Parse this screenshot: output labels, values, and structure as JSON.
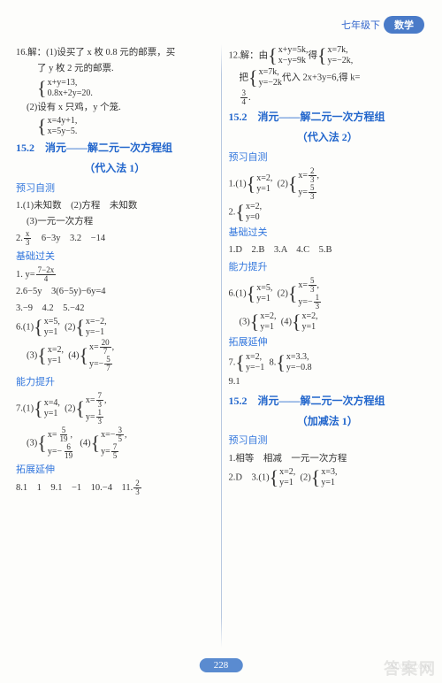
{
  "header": {
    "grade": "七年级下",
    "subject": "数学"
  },
  "left": {
    "p16": {
      "t": "16.解：(1)设买了 x 枚 0.8 元的邮票，买",
      "t2": "了 y 枚 2 元的邮票.",
      "sys1a": "x+y=13,",
      "sys1b": "0.8x+2y=20.",
      "t3": "(2)设有 x 只鸡，y 个笼.",
      "sys2a": "x=4y+1,",
      "sys2b": "x=5y−5."
    },
    "title1": "15.2　消元——解二元一次方程组",
    "title1b": "（代入法 1）",
    "yuxi": "预习自测",
    "y1": "1.(1)未知数　(2)方程　未知数",
    "y1b": "(3)一元一次方程",
    "y2a": "2.",
    "y2frac": {
      "n": "x",
      "d": "3"
    },
    "y2b": "　6−3y　3.2　−14",
    "jichu": "基础过关",
    "j1a": "1. y=",
    "j1frac": {
      "n": "7−2x",
      "d": "4"
    },
    "j2": "2.6−5y　3(6−5y)−6y=4",
    "j3": "3.−9　4.2　5.−42",
    "j6": "6.(1)",
    "j6s1a": "x=5,",
    "j6s1b": "y=1",
    "j6_2": "(2)",
    "j6s2a": "x=−2,",
    "j6s2b": "y=−1",
    "j6_3": "(3)",
    "j6s3a": "x=2,",
    "j6s3b": "y=1",
    "j6_4": "(4)",
    "j6s4a": "x=",
    "j6s4af": {
      "n": "20",
      "d": "7"
    },
    "j6s4ac": ",",
    "j6s4b": "y=−",
    "j6s4bf": {
      "n": "5",
      "d": "7"
    },
    "nengli": "能力提升",
    "n7": "7.(1)",
    "n7s1a": "x=4,",
    "n7s1b": "y=1",
    "n7_2": "(2)",
    "n7s2a": "x=",
    "n7s2af": {
      "n": "7",
      "d": "3"
    },
    "n7s2ac": ",",
    "n7s2b": "y=",
    "n7s2bf": {
      "n": "1",
      "d": "3"
    },
    "n7_3": "(3)",
    "n7s3a": "x=",
    "n7s3af": {
      "n": "5",
      "d": "19"
    },
    "n7s3ac": ",",
    "n7s3b": "y=−",
    "n7s3bf": {
      "n": "6",
      "d": "19"
    },
    "n7_4": "(4)",
    "n7s4a": "x=−",
    "n7s4af": {
      "n": "3",
      "d": "5"
    },
    "n7s4ac": ",",
    "n7s4b": "y=",
    "n7s4bf": {
      "n": "7",
      "d": "5"
    },
    "tuozhan": "拓展延伸",
    "t8": "8.1　1　9.1　−1　10.−4　11.",
    "t8f": {
      "n": "2",
      "d": "3"
    }
  },
  "right": {
    "p12a": "12.解：由",
    "p12s1a": "x+y=5k,",
    "p12s1b": "x−y=9k",
    "p12b": "得",
    "p12s2a": "x=7k,",
    "p12s2b": "y=−2k,",
    "p12c": "把",
    "p12s3a": "x=7k,",
    "p12s3b": "y=−2k",
    "p12d": "代入 2x+3y=6,得 k=",
    "p12f": {
      "n": "3",
      "d": "4"
    },
    "p12e": ".",
    "title2": "15.2　消元——解二元一次方程组",
    "title2b": "（代入法 2）",
    "yuxi": "预习自测",
    "y1": "1.(1)",
    "y1s1a": "x=2,",
    "y1s1b": "y=1",
    "y1_2": "(2)",
    "y1s2a": "x=",
    "y1s2af": {
      "n": "2",
      "d": "3"
    },
    "y1s2ac": ",",
    "y1s2b": "y=",
    "y1s2bf": {
      "n": "5",
      "d": "3"
    },
    "y2": "2.",
    "y2s1a": "x=2,",
    "y2s1b": "y=0",
    "jichu": "基础过关",
    "j1": "1.D　2.B　3.A　4.C　5.B",
    "nengli": "能力提升",
    "n6": "6.(1)",
    "n6s1a": "x=5,",
    "n6s1b": "y=1",
    "n6_2": "(2)",
    "n6s2a": "x=",
    "n6s2af": {
      "n": "5",
      "d": "3"
    },
    "n6s2ac": ",",
    "n6s2b": "y=−",
    "n6s2bf": {
      "n": "1",
      "d": "3"
    },
    "n6_3": "(3)",
    "n6s3a": "x=2,",
    "n6s3b": "y=1",
    "n6_4": "(4)",
    "n6s4a": "x=2,",
    "n6s4b": "y=1",
    "tuozhan": "拓展延伸",
    "t7": "7.",
    "t7s1a": "x=2,",
    "t7s1b": "y=−1",
    "t8": "8.",
    "t8s1a": "x=3.3,",
    "t8s1b": "y=−0.8",
    "t9": "9.1",
    "title3": "15.2　消元——解二元一次方程组",
    "title3b": "（加减法 1）",
    "yuxi3": "预习自测",
    "y31": "1.相等　相减　一元一次方程",
    "y32": "2.D　3.(1)",
    "y32s1a": "x=2,",
    "y32s1b": "y=1",
    "y32_2": "(2)",
    "y32s2a": "x=3,",
    "y32s2b": "y=1"
  },
  "page": "228"
}
